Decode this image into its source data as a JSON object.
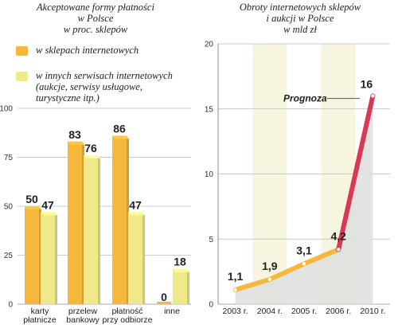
{
  "left": {
    "title": [
      "Akceptowane formy płatności",
      "w Polsce",
      "w proc. sklepów"
    ],
    "legend": [
      {
        "lines": [
          "w sklepach internetowych"
        ],
        "color": "#f5b83d"
      },
      {
        "lines": [
          "w innych serwisach internetowych",
          "(aukcje, serwisy usługowe,",
          "turystyczne itp.)"
        ],
        "color": "#f0e98a"
      }
    ]
  },
  "right": {
    "title": [
      "Obroty internetowych sklepów",
      "i aukcji w Polsce",
      "w mld zł"
    ],
    "annotation": "Prognoza"
  },
  "chart_data": [
    {
      "type": "bar",
      "title": "Akceptowane formy płatności w Polsce w proc. sklepów",
      "categories": [
        [
          "karty",
          "płatnicze"
        ],
        [
          "przelew",
          "bankowy"
        ],
        [
          "płatność",
          "przy odbiorze"
        ],
        [
          "inne"
        ]
      ],
      "series": [
        {
          "name": "w sklepach internetowych",
          "values": [
            50,
            83,
            86,
            0
          ],
          "labels": [
            "50",
            "83",
            "86",
            "0"
          ],
          "color": "#f5b83d"
        },
        {
          "name": "w innych serwisach internetowych (aukcje, serwisy usługowe, turystyczne itp.)",
          "values": [
            47,
            76,
            47,
            18
          ],
          "labels": [
            "47",
            "76",
            "47",
            "18"
          ],
          "color": "#f0e98a"
        }
      ],
      "ylim": [
        0,
        100
      ],
      "yticks": [
        0,
        25,
        50,
        75,
        100
      ],
      "grid": true
    },
    {
      "type": "line",
      "title": "Obroty internetowych sklepów i aukcji w Polsce w mld zł",
      "x": [
        "2003 r.",
        "2004 r.",
        "2005 r.",
        "2006 r.",
        "2010 r."
      ],
      "values": [
        1.1,
        1.9,
        3.1,
        4.2,
        16
      ],
      "labels": [
        "1,1",
        "1,9",
        "3,1",
        "4,2",
        "16"
      ],
      "forecast_from_index": 3,
      "ylim": [
        0,
        20
      ],
      "yticks": [
        0,
        5,
        10,
        15,
        20
      ],
      "grid": true,
      "colors": {
        "line": "#f5b83d",
        "forecast": "#d83a55",
        "shade_a": "#f7f5e0",
        "shade_b": "#dedede"
      }
    }
  ]
}
